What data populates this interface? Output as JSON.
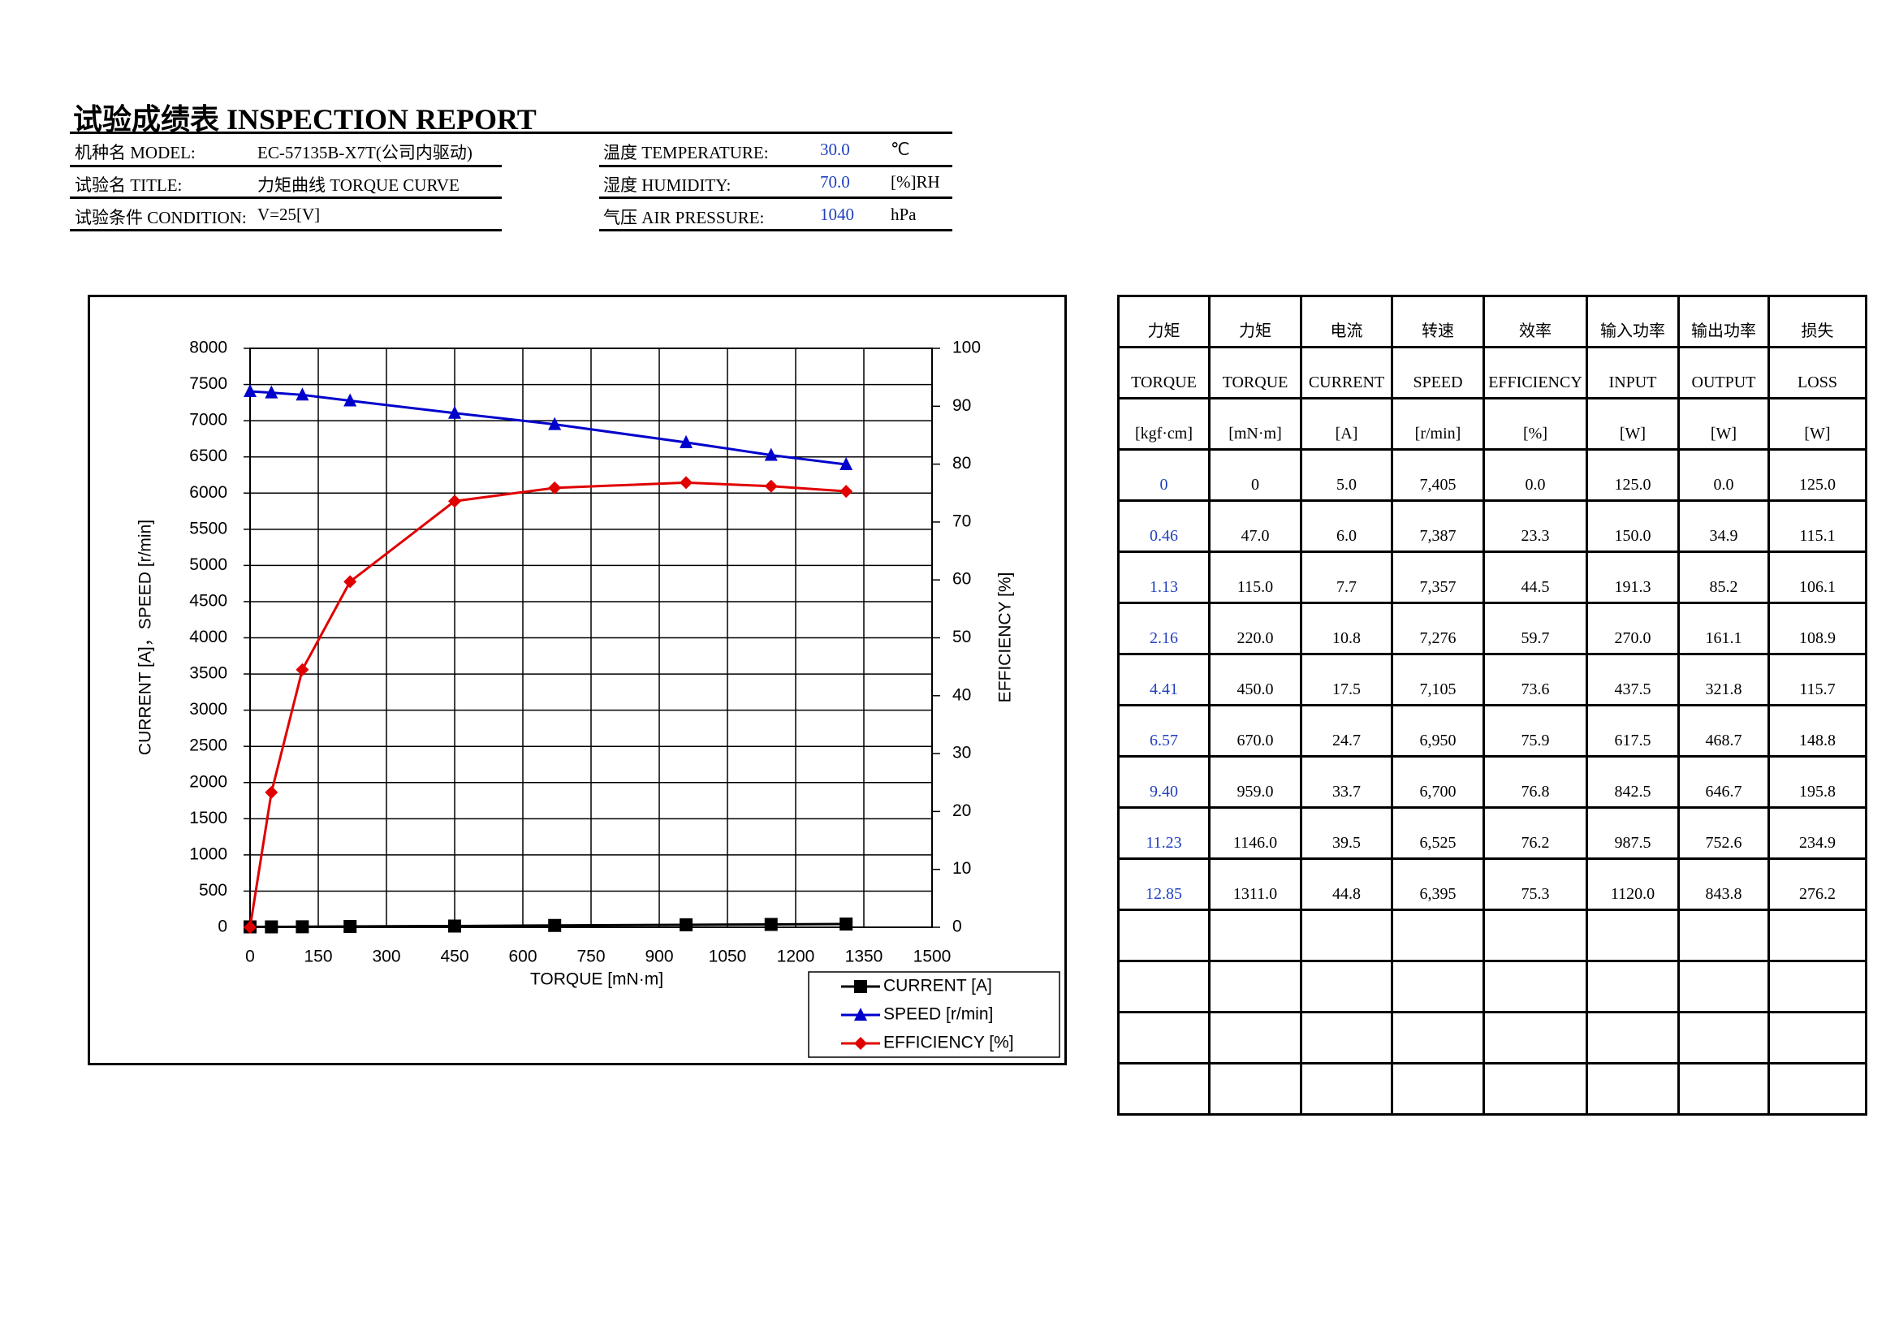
{
  "header": {
    "title": "试验成绩表 INSPECTION REPORT",
    "fields": [
      {
        "label": "机种名 MODEL:",
        "value": "EC-57135B-X7T(公司内驱动)"
      },
      {
        "label": "试验名 TITLE:",
        "value": "力矩曲线 TORQUE CURVE"
      },
      {
        "label": "试验条件 CONDITION:",
        "value": "V=25[V]"
      }
    ],
    "conditions": [
      {
        "label": "温度 TEMPERATURE:",
        "value": "30.0",
        "unit": "℃"
      },
      {
        "label": "湿度 HUMIDITY:",
        "value": "70.0",
        "unit": "[%]RH"
      },
      {
        "label": "气压 AIR PRESSURE:",
        "value": "1040",
        "unit": "hPa"
      }
    ]
  },
  "chart_data": {
    "type": "line",
    "x_label": "TORQUE [mN·m]",
    "y_label": "CURRENT [A]，SPEED [r/min]",
    "y2_label": "EFFICIENCY [%]",
    "x": [
      0,
      47,
      115,
      220,
      450,
      670,
      959,
      1146,
      1311
    ],
    "xlim": [
      0,
      1500
    ],
    "xticks": [
      0,
      150,
      300,
      450,
      600,
      750,
      900,
      1050,
      1200,
      1350,
      1500
    ],
    "ylim": [
      0,
      8000
    ],
    "yticks": [
      0,
      500,
      1000,
      1500,
      2000,
      2500,
      3000,
      3500,
      4000,
      4500,
      5000,
      5500,
      6000,
      6500,
      7000,
      7500,
      8000
    ],
    "y2lim": [
      0,
      100
    ],
    "y2ticks": [
      0,
      10,
      20,
      30,
      40,
      50,
      60,
      70,
      80,
      90,
      100
    ],
    "grid": true,
    "legend": "bottom-right",
    "series": [
      {
        "name": "CURRENT [A]",
        "color": "#000000",
        "marker": "square",
        "values": [
          5.0,
          6.0,
          7.7,
          10.8,
          17.5,
          24.7,
          33.7,
          39.5,
          44.8
        ]
      },
      {
        "name": "SPEED [r/min]",
        "color": "#0000cc",
        "marker": "triangle",
        "values": [
          7405,
          7387,
          7357,
          7276,
          7105,
          6950,
          6700,
          6525,
          6395
        ]
      },
      {
        "name": "EFFICIENCY [%]",
        "color": "#e00000",
        "marker": "diamond",
        "axis": "y2",
        "values": [
          0.0,
          23.3,
          44.5,
          59.7,
          73.6,
          75.9,
          76.8,
          76.2,
          75.3
        ]
      }
    ]
  },
  "table": {
    "header": [
      [
        "力矩",
        "力矩",
        "电流",
        "转速",
        "效率",
        "输入功率",
        "输出功率",
        "损失"
      ],
      [
        "TORQUE",
        "TORQUE",
        "CURRENT",
        "SPEED",
        "EFFICIENCY",
        "INPUT",
        "OUTPUT",
        "LOSS"
      ],
      [
        "[kgf·cm]",
        "[mN·m]",
        "[A]",
        "[r/min]",
        "[%]",
        "[W]",
        "[W]",
        "[W]"
      ]
    ],
    "rows": [
      [
        "0",
        "0",
        "5.0",
        "7,405",
        "0.0",
        "125.0",
        "0.0",
        "125.0"
      ],
      [
        "0.46",
        "47.0",
        "6.0",
        "7,387",
        "23.3",
        "150.0",
        "34.9",
        "115.1"
      ],
      [
        "1.13",
        "115.0",
        "7.7",
        "7,357",
        "44.5",
        "191.3",
        "85.2",
        "106.1"
      ],
      [
        "2.16",
        "220.0",
        "10.8",
        "7,276",
        "59.7",
        "270.0",
        "161.1",
        "108.9"
      ],
      [
        "4.41",
        "450.0",
        "17.5",
        "7,105",
        "73.6",
        "437.5",
        "321.8",
        "115.7"
      ],
      [
        "6.57",
        "670.0",
        "24.7",
        "6,950",
        "75.9",
        "617.5",
        "468.7",
        "148.8"
      ],
      [
        "9.40",
        "959.0",
        "33.7",
        "6,700",
        "76.8",
        "842.5",
        "646.7",
        "195.8"
      ],
      [
        "11.23",
        "1146.0",
        "39.5",
        "6,525",
        "76.2",
        "987.5",
        "752.6",
        "234.9"
      ],
      [
        "12.85",
        "1311.0",
        "44.8",
        "6,395",
        "75.3",
        "1120.0",
        "843.8",
        "276.2"
      ]
    ]
  }
}
